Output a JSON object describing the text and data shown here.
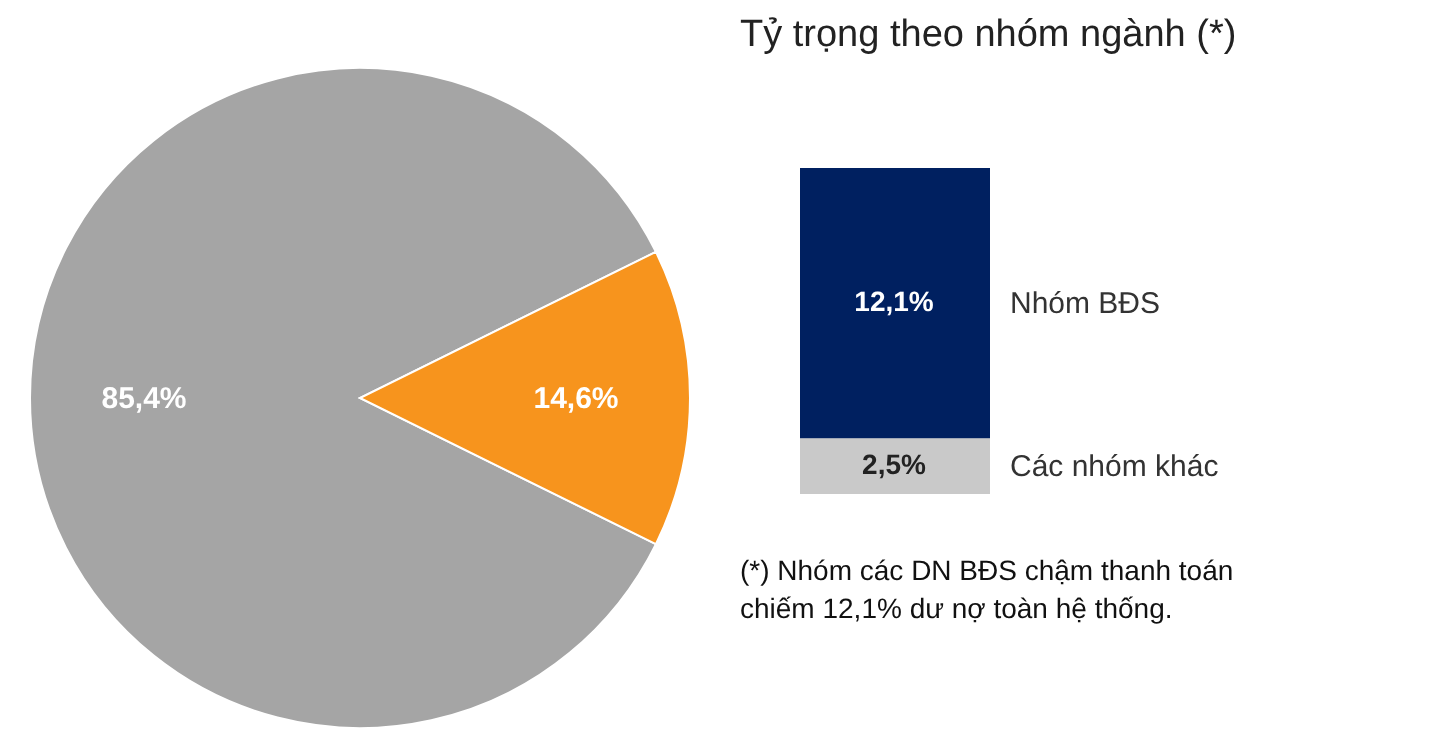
{
  "chart_data": [
    {
      "type": "pie",
      "categories": [
        null,
        null
      ],
      "values": [
        85.4,
        14.6
      ],
      "colors": [
        "#a5a5a5",
        "#f7941d"
      ],
      "value_labels": [
        "85,4%",
        "14,6%"
      ],
      "legend": false
    },
    {
      "type": "bar",
      "stacked": true,
      "title": "Tỷ trọng theo nhóm ngành (*)",
      "categories": [
        null
      ],
      "series": [
        {
          "name": "Các nhóm khác",
          "color": "#c9c9c9",
          "values": [
            2.5
          ],
          "value_labels": [
            "2,5%"
          ]
        },
        {
          "name": "Nhóm BĐS",
          "color": "#002060",
          "values": [
            12.1
          ],
          "value_labels": [
            "12,1%"
          ]
        }
      ],
      "annotations": [
        "(*) Nhóm các DN BĐS chậm thanh toán chiếm 12,1% dư nợ toàn hệ thống."
      ]
    }
  ]
}
